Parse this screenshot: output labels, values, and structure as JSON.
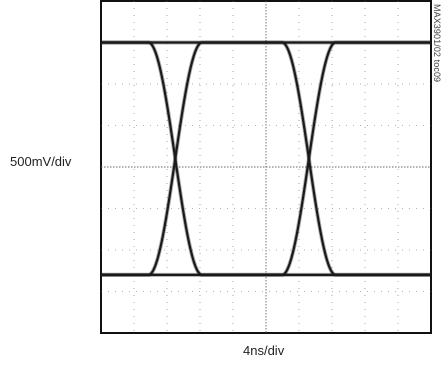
{
  "chart_data": {
    "type": "line",
    "title": "",
    "ylabel": "500mV/div",
    "xlabel": "4ns/div",
    "figure_id": "MAX3901/02 toc09",
    "x_divisions": 10,
    "y_divisions": 8,
    "grid": true,
    "xlim_ns": [
      0,
      40
    ],
    "ylim_mV": [
      -2000,
      2000
    ],
    "levels_mV": {
      "high": 1500,
      "low": -1300
    },
    "crossing_times_ns": [
      9.0,
      25.2
    ],
    "crossing_level_mV": 100,
    "transition_width_ns": 6.5,
    "trace_color": "#1a1a1a"
  }
}
